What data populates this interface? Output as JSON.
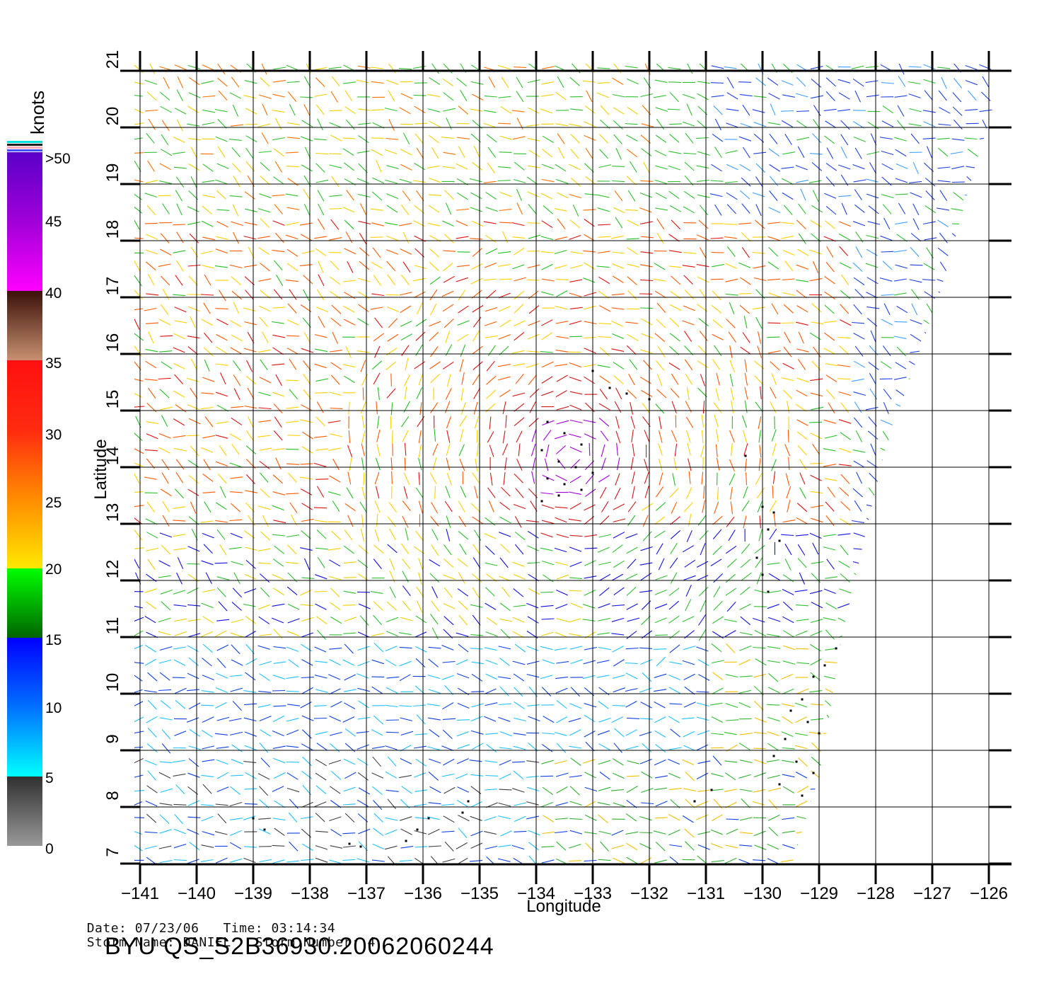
{
  "map": {
    "units_label": "knots",
    "x_axis_label": "Longitude",
    "y_axis_label": "Latitude",
    "lon_ticks": [
      "-141",
      "-140",
      "-139",
      "-138",
      "-137",
      "-136",
      "-135",
      "-134",
      "-133",
      "-132",
      "-131",
      "-130",
      "-129",
      "-128",
      "-127",
      "-126"
    ],
    "lat_ticks": [
      "7",
      "8",
      "9",
      "10",
      "11",
      "12",
      "13",
      "14",
      "15",
      "16",
      "17",
      "18",
      "19",
      "20",
      "21"
    ],
    "lon_range": [
      -141,
      -126
    ],
    "lat_range": [
      7,
      21
    ],
    "grid": true
  },
  "legend": {
    "labels": [
      ">50",
      "45",
      "40",
      "35",
      "30",
      "25",
      "20",
      "15",
      "10",
      "5",
      "0"
    ],
    "colors": [
      "#5a00c8",
      "#a000d8",
      "#ff00ff",
      "#4a1a10",
      "#c08060",
      "#ff1010",
      "#ff7000",
      "#ffc800",
      "#ffff30",
      "#00ff00",
      "#006400",
      "#0000ff",
      "#0080ff",
      "#00ffff",
      "#303030",
      "#909090"
    ]
  },
  "footer": {
    "date_label": "Date:",
    "date_value": "07/23/06",
    "time_label": "Time:",
    "time_value": "03:14:34",
    "storm_name_label": "Storm Name:",
    "storm_name_value": "DANIEL",
    "storm_number_label": "Storm Number:",
    "storm_number_value": "4",
    "product_id": "BYU QS_S2B36930.20062060244"
  }
}
